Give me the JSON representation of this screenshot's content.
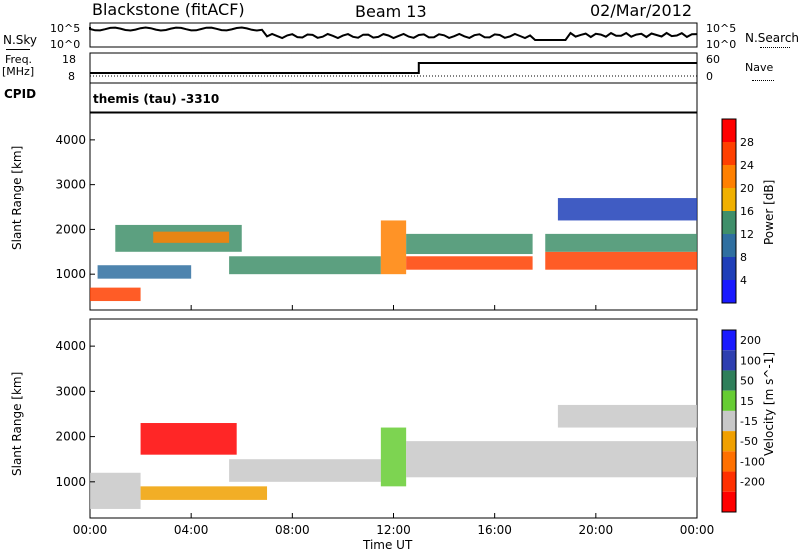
{
  "header": {
    "site": "Blackstone (fitACF)",
    "beam": "Beam 13",
    "date": "02/Mar/2012"
  },
  "top_panels": {
    "nsky_label": "N.Sky",
    "nsearch_label": "N.Search",
    "freq_label": "Freq.",
    "freq_unit": "[MHz]",
    "nave_label": "Nave",
    "cpid_label": "CPID",
    "cpid_value": "themis (tau) -3310",
    "noise_ticks": [
      "10^5",
      "10^0"
    ],
    "freq_ticks": [
      "18",
      "8"
    ],
    "nave_ticks": [
      "60",
      "0"
    ]
  },
  "colors": {
    "power_scale": [
      "#1a1aff",
      "#1f3fb8",
      "#2f6fa0",
      "#3f8f6a",
      "#f0b000",
      "#ff8000",
      "#ff4000",
      "#ff0000"
    ],
    "velocity_scale": [
      "#1a1aff",
      "#2e3fb0",
      "#2f7f5a",
      "#66cc33",
      "#c8c8c8",
      "#f0a000",
      "#ff7000",
      "#ff3000",
      "#ff0000"
    ]
  },
  "chart_data": [
    {
      "type": "heatmap",
      "name": "power",
      "title": "",
      "xlabel": "Time UT",
      "ylabel": "Slant Range [km]",
      "x_ticks": [
        "00:00",
        "04:00",
        "08:00",
        "12:00",
        "16:00",
        "20:00",
        "00:00"
      ],
      "y_ticks": [
        1000,
        2000,
        3000,
        4000
      ],
      "ylim": [
        200,
        4600
      ],
      "colorbar": {
        "label": "Power [dB]",
        "ticks": [
          4,
          8,
          12,
          16,
          20,
          24,
          28
        ]
      },
      "bands": [
        {
          "t0": 0.0,
          "t1": 2.0,
          "r0": 400,
          "r1": 700,
          "power": 24
        },
        {
          "t0": 0.3,
          "t1": 4.0,
          "r0": 900,
          "r1": 1200,
          "power": 10
        },
        {
          "t0": 1.0,
          "t1": 6.0,
          "r0": 1500,
          "r1": 2100,
          "power": 14
        },
        {
          "t0": 2.5,
          "t1": 5.5,
          "r0": 1700,
          "r1": 1950,
          "power": 22
        },
        {
          "t0": 5.5,
          "t1": 11.5,
          "r0": 1000,
          "r1": 1400,
          "power": 12
        },
        {
          "t0": 11.5,
          "t1": 12.5,
          "r0": 1000,
          "r1": 2200,
          "power": 20
        },
        {
          "t0": 12.5,
          "t1": 17.5,
          "r0": 1100,
          "r1": 1400,
          "power": 26
        },
        {
          "t0": 12.5,
          "t1": 17.5,
          "r0": 1450,
          "r1": 1900,
          "power": 12
        },
        {
          "t0": 18.0,
          "t1": 24.0,
          "r0": 1100,
          "r1": 1500,
          "power": 24
        },
        {
          "t0": 18.0,
          "t1": 24.0,
          "r0": 1500,
          "r1": 1900,
          "power": 12
        },
        {
          "t0": 18.5,
          "t1": 24.0,
          "r0": 2200,
          "r1": 2700,
          "power": 6
        }
      ]
    },
    {
      "type": "heatmap",
      "name": "velocity",
      "title": "",
      "xlabel": "Time UT",
      "ylabel": "Slant Range [km]",
      "x_ticks": [
        "00:00",
        "04:00",
        "08:00",
        "12:00",
        "16:00",
        "20:00",
        "00:00"
      ],
      "y_ticks": [
        1000,
        2000,
        3000,
        4000
      ],
      "ylim": [
        200,
        4600
      ],
      "colorbar": {
        "label": "Velocity [m s^-1]",
        "ticks": [
          200,
          100,
          50,
          15,
          -15,
          -50,
          -100,
          -200
        ]
      },
      "bands": [
        {
          "t0": 0.0,
          "t1": 2.0,
          "r0": 400,
          "r1": 1200,
          "velocity": 0
        },
        {
          "t0": 2.0,
          "t1": 5.8,
          "r0": 1600,
          "r1": 2300,
          "velocity": -200
        },
        {
          "t0": 2.0,
          "t1": 7.0,
          "r0": 600,
          "r1": 900,
          "velocity": -50
        },
        {
          "t0": 5.5,
          "t1": 11.5,
          "r0": 1000,
          "r1": 1500,
          "velocity": 0
        },
        {
          "t0": 11.5,
          "t1": 12.5,
          "r0": 900,
          "r1": 2200,
          "velocity": 30
        },
        {
          "t0": 12.5,
          "t1": 24.0,
          "r0": 1100,
          "r1": 1900,
          "velocity": 0
        },
        {
          "t0": 18.5,
          "t1": 24.0,
          "r0": 2200,
          "r1": 2700,
          "velocity": 0
        }
      ]
    }
  ]
}
